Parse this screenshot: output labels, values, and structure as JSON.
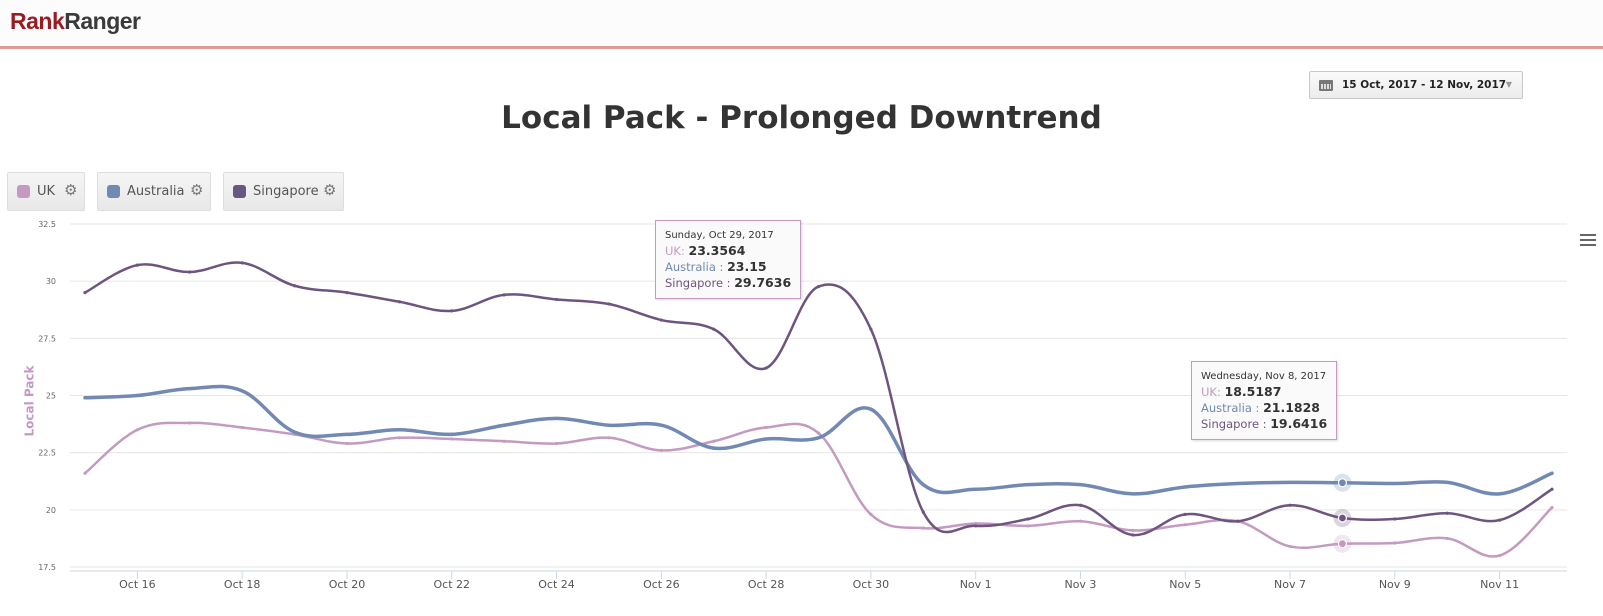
{
  "header": {
    "logo_part1": "Rank",
    "logo_part2": "Ranger"
  },
  "date_range": {
    "label": "15 Oct, 2017 - 12 Nov, 2017",
    "icon": "calendar-icon"
  },
  "legend": [
    {
      "name": "UK",
      "color": "#c49ac0",
      "icon": "gear-icon"
    },
    {
      "name": "Australia",
      "color": "#7189b3",
      "icon": "gear-icon"
    },
    {
      "name": "Singapore",
      "color": "#6e5480",
      "icon": "gear-icon"
    }
  ],
  "tooltips": [
    {
      "date": "Sunday, Oct 29, 2017",
      "rows": [
        {
          "label": "UK:",
          "value": "23.3564"
        },
        {
          "label": "Australia :",
          "value": "23.15"
        },
        {
          "label": "Singapore :",
          "value": "29.7636"
        }
      ]
    },
    {
      "date": "Wednesday, Nov 8, 2017",
      "rows": [
        {
          "label": "UK:",
          "value": "18.5187"
        },
        {
          "label": "Australia :",
          "value": "21.1828"
        },
        {
          "label": "Singapore :",
          "value": "19.6416"
        }
      ]
    }
  ],
  "chart_data": {
    "type": "line",
    "title": "Local Pack - Prolonged Downtrend",
    "xlabel": "",
    "ylabel": "Local Pack",
    "ylim": [
      17.5,
      32.5
    ],
    "yticks": [
      "32.5",
      "30",
      "27.5",
      "25",
      "22.5",
      "20",
      "17.5"
    ],
    "ytick_values": [
      32.5,
      30,
      27.5,
      25,
      22.5,
      20,
      17.5
    ],
    "x": [
      "Oct 15",
      "Oct 16",
      "Oct 17",
      "Oct 18",
      "Oct 19",
      "Oct 20",
      "Oct 21",
      "Oct 22",
      "Oct 23",
      "Oct 24",
      "Oct 25",
      "Oct 26",
      "Oct 27",
      "Oct 28",
      "Oct 29",
      "Oct 30",
      "Oct 31",
      "Nov 1",
      "Nov 2",
      "Nov 3",
      "Nov 4",
      "Nov 5",
      "Nov 6",
      "Nov 7",
      "Nov 8",
      "Nov 9",
      "Nov 10",
      "Nov 11",
      "Nov 12"
    ],
    "xticks": [
      "Oct 16",
      "Oct 18",
      "Oct 20",
      "Oct 22",
      "Oct 24",
      "Oct 26",
      "Oct 28",
      "Oct 30",
      "Nov 1",
      "Nov 3",
      "Nov 5",
      "Nov 7",
      "Nov 9",
      "Nov 11"
    ],
    "xtick_index": [
      1,
      3,
      5,
      7,
      9,
      11,
      13,
      15,
      17,
      19,
      21,
      23,
      25,
      27
    ],
    "grid": true,
    "legend_position": "top-left",
    "series": [
      {
        "name": "UK",
        "color": "#c49ac0",
        "width": 2.5,
        "values": [
          21.6,
          23.5,
          23.8,
          23.6,
          23.3,
          22.9,
          23.15,
          23.1,
          23.0,
          22.9,
          23.15,
          22.6,
          23.0,
          23.6,
          23.3564,
          19.8,
          19.2,
          19.4,
          19.3,
          19.5,
          19.1,
          19.35,
          19.5,
          18.4,
          18.5187,
          18.55,
          18.75,
          18.0,
          20.1
        ]
      },
      {
        "name": "Australia",
        "color": "#7189b3",
        "width": 3.5,
        "values": [
          24.9,
          25.0,
          25.3,
          25.2,
          23.4,
          23.3,
          23.5,
          23.3,
          23.7,
          24.0,
          23.7,
          23.7,
          22.7,
          23.1,
          23.15,
          24.4,
          21.1,
          20.9,
          21.1,
          21.1,
          20.7,
          21.0,
          21.15,
          21.2,
          21.1828,
          21.15,
          21.2,
          20.7,
          21.6
        ]
      },
      {
        "name": "Singapore",
        "color": "#6e5480",
        "width": 2.5,
        "values": [
          29.5,
          30.7,
          30.4,
          30.8,
          29.8,
          29.5,
          29.1,
          28.7,
          29.4,
          29.2,
          29.0,
          28.3,
          27.9,
          26.2,
          29.7636,
          27.9,
          19.9,
          19.3,
          19.6,
          20.2,
          18.9,
          19.8,
          19.5,
          20.2,
          19.6416,
          19.6,
          19.85,
          19.55,
          20.9
        ]
      }
    ],
    "highlight_index": 24
  }
}
